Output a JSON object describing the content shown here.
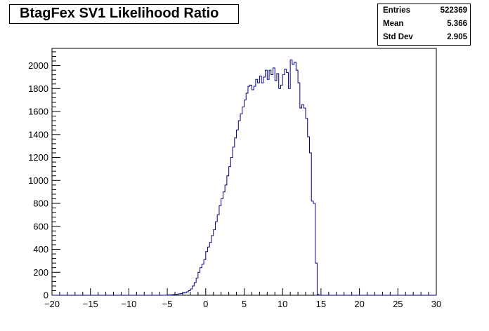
{
  "title": "BtagFex SV1 Likelihood Ratio",
  "stats": [
    {
      "name": "Entries",
      "value": "522369"
    },
    {
      "name": "Mean",
      "value": "5.366"
    },
    {
      "name": "Std Dev",
      "value": "2.905"
    }
  ],
  "colors": {
    "line": "#000080",
    "axis": "#000000",
    "background": "#ffffff"
  },
  "chart_data": {
    "type": "histogram",
    "title": "BtagFex SV1 Likelihood Ratio",
    "xlabel": "",
    "ylabel": "",
    "xlim": [
      -20,
      30
    ],
    "ylim": [
      0,
      2150
    ],
    "bin_width": 0.25,
    "x_ticks": [
      -20,
      -15,
      -10,
      -5,
      0,
      5,
      10,
      15,
      20,
      25,
      30
    ],
    "x_tick_labels": [
      "−20",
      "−15",
      "−10",
      "−5",
      "0",
      "5",
      "10",
      "15",
      "20",
      "25",
      "30"
    ],
    "y_ticks": [
      0,
      200,
      400,
      600,
      800,
      1000,
      1200,
      1400,
      1600,
      1800,
      2000
    ],
    "y_tick_labels": [
      "0",
      "200",
      "400",
      "600",
      "800",
      "1000",
      "1200",
      "1400",
      "1600",
      "1800",
      "2000"
    ],
    "bin_edges_start": -5,
    "values": [
      2,
      3,
      4,
      6,
      8,
      10,
      12,
      16,
      20,
      24,
      30,
      40,
      55,
      80,
      110,
      150,
      200,
      240,
      270,
      310,
      380,
      420,
      460,
      520,
      570,
      640,
      700,
      780,
      840,
      900,
      960,
      1040,
      1120,
      1200,
      1290,
      1370,
      1440,
      1520,
      1580,
      1640,
      1700,
      1760,
      1820,
      1830,
      1790,
      1820,
      1880,
      1850,
      1910,
      1850,
      1900,
      1960,
      1880,
      1960,
      1920,
      1980,
      1870,
      1930,
      1800,
      1830,
      1920,
      1970,
      1940,
      1800,
      2050,
      2010,
      2030,
      1960,
      1850,
      1630,
      1660,
      1630,
      1540,
      1380,
      1240,
      820,
      800,
      280,
      5
    ]
  }
}
